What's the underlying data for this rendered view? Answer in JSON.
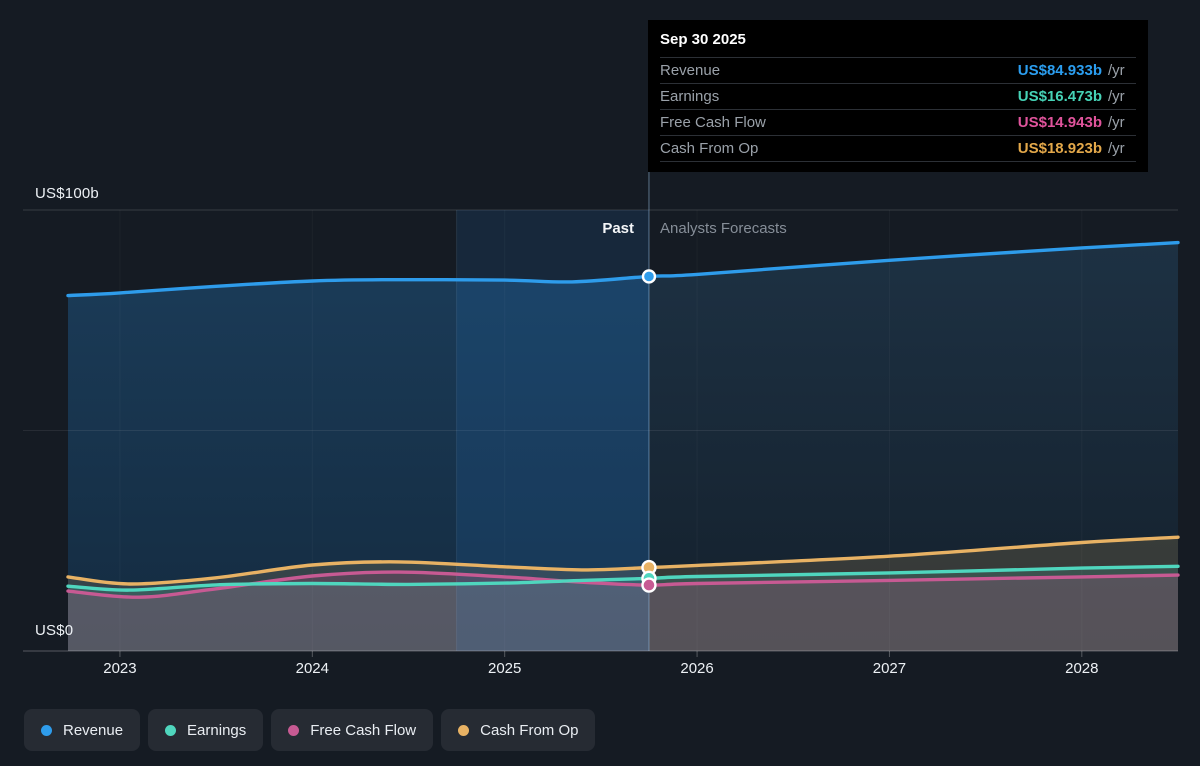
{
  "page": {
    "background": "#151b23"
  },
  "labels": {
    "past": "Past",
    "forecasts": "Analysts Forecasts",
    "y_top": "US$100b",
    "y_bottom": "US$0"
  },
  "tooltip": {
    "title": "Sep 30 2025",
    "rows": [
      {
        "key": "revenue",
        "label": "Revenue",
        "value": "US$84.933b",
        "suffix": "/yr",
        "color": "#2b9ef0"
      },
      {
        "key": "earnings",
        "label": "Earnings",
        "value": "US$16.473b",
        "suffix": "/yr",
        "color": "#46d2b6"
      },
      {
        "key": "fcf",
        "label": "Free Cash Flow",
        "value": "US$14.943b",
        "suffix": "/yr",
        "color": "#e0549c"
      },
      {
        "key": "cashop",
        "label": "Cash From Op",
        "value": "US$18.923b",
        "suffix": "/yr",
        "color": "#e3a84a"
      }
    ]
  },
  "legend": {
    "items": [
      {
        "key": "revenue",
        "label": "Revenue",
        "color": "#2e9ceb"
      },
      {
        "key": "earnings",
        "label": "Earnings",
        "color": "#4fd6be"
      },
      {
        "key": "fcf",
        "label": "Free Cash Flow",
        "color": "#c75a93"
      },
      {
        "key": "cashop",
        "label": "Cash From Op",
        "color": "#e8b264"
      }
    ]
  },
  "chart_data": {
    "type": "area",
    "title": "Past performance and analysts forecasts of revenue, earnings and cash flows (US$ billions per year)",
    "x_range": [
      2022.73,
      2028.5
    ],
    "x_ticks": [
      2023,
      2024,
      2025,
      2026,
      2027,
      2028
    ],
    "ylim": [
      0,
      100
    ],
    "y_gridline_values": [
      0,
      50,
      100
    ],
    "y_unit": "US$ billions / yr",
    "divider_x": 2025.75,
    "divider_date": "Sep 30 2025",
    "highlight_band": [
      2024.75,
      2025.75
    ],
    "grid": true,
    "legend_position": "bottom-left",
    "series": [
      {
        "key": "revenue",
        "name": "Revenue",
        "color": "#2E9CEB",
        "marker_value": 84.933,
        "x": [
          2022.73,
          2023,
          2023.5,
          2024,
          2024.4,
          2025,
          2025.35,
          2025.75,
          2026,
          2027,
          2028,
          2028.5
        ],
        "y": [
          80.6,
          81.2,
          82.7,
          83.9,
          84.2,
          84.1,
          83.7,
          84.933,
          85.4,
          88.6,
          91.4,
          92.6
        ]
      },
      {
        "key": "cashop",
        "name": "Cash From Op",
        "color": "#E8B264",
        "fill": "rgba(232,178,100,0.16)",
        "marker_value": 18.923,
        "x": [
          2022.73,
          2023.05,
          2023.5,
          2024,
          2024.45,
          2025,
          2025.4,
          2025.75,
          2026,
          2027,
          2028,
          2028.5
        ],
        "y": [
          16.8,
          15.2,
          16.6,
          19.5,
          20.2,
          19.1,
          18.4,
          18.923,
          19.4,
          21.5,
          24.6,
          25.8
        ]
      },
      {
        "key": "fcf",
        "name": "Free Cash Flow",
        "color": "#C75A93",
        "fill": "rgba(199,90,147,0.20)",
        "marker_value": 14.943,
        "x": [
          2022.73,
          2023.1,
          2023.5,
          2024,
          2024.45,
          2025,
          2025.4,
          2025.75,
          2026,
          2027,
          2028,
          2028.5
        ],
        "y": [
          13.6,
          12.2,
          14.1,
          17.0,
          17.9,
          16.8,
          15.6,
          14.943,
          15.3,
          16.0,
          16.8,
          17.2
        ]
      },
      {
        "key": "earnings",
        "name": "Earnings",
        "color": "#4FD6BE",
        "fill": "rgba(79,214,190,0.16)",
        "marker_value": 16.473,
        "x": [
          2022.73,
          2023.05,
          2023.5,
          2024,
          2024.5,
          2025,
          2025.4,
          2025.75,
          2026,
          2027,
          2028,
          2028.5
        ],
        "y": [
          14.7,
          13.8,
          15.0,
          15.3,
          15.1,
          15.4,
          16.0,
          16.473,
          16.9,
          17.7,
          18.8,
          19.2
        ]
      }
    ],
    "colors": {
      "past_area_top": "#1B3C59",
      "past_area_bottom": "#142B40",
      "forecast_area_top": "#1D3143",
      "forecast_area_bottom": "#14202C",
      "band_overlay": "rgba(45,140,235,0.12)",
      "divider_line": "rgba(150,188,222,0.55)"
    }
  }
}
